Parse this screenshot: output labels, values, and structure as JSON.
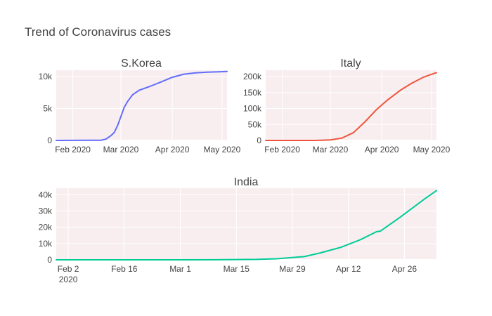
{
  "title": "Trend of Coronavirus cases",
  "colors": {
    "plot_bg": "#f8eef0",
    "grid": "#ffffff"
  },
  "chart_data": [
    {
      "type": "line",
      "subtitle": "S.Korea",
      "x_ticks": [
        "Feb 2020",
        "Mar 2020",
        "Apr 2020",
        "May 2020"
      ],
      "y_ticks": [
        "0",
        "5k",
        "10k"
      ],
      "ylim": [
        0,
        11000
      ],
      "series": [
        {
          "color": "#636efa",
          "x": [
            "2020-01-22",
            "2020-02-01",
            "2020-02-10",
            "2020-02-18",
            "2020-02-21",
            "2020-02-24",
            "2020-02-26",
            "2020-02-28",
            "2020-03-01",
            "2020-03-03",
            "2020-03-05",
            "2020-03-08",
            "2020-03-12",
            "2020-03-18",
            "2020-03-25",
            "2020-04-01",
            "2020-04-08",
            "2020-04-15",
            "2020-04-22",
            "2020-05-01",
            "2020-05-04"
          ],
          "y": [
            1,
            12,
            27,
            31,
            204,
            763,
            1261,
            2337,
            3736,
            5186,
            6088,
            7134,
            7869,
            8413,
            9137,
            9887,
            10384,
            10591,
            10694,
            10774,
            10801
          ]
        }
      ]
    },
    {
      "type": "line",
      "subtitle": "Italy",
      "x_ticks": [
        "Feb 2020",
        "Mar 2020",
        "Apr 2020",
        "May 2020"
      ],
      "y_ticks": [
        "0",
        "50k",
        "100k",
        "150k",
        "200k"
      ],
      "ylim": [
        0,
        220000
      ],
      "series": [
        {
          "color": "#ef553b",
          "x": [
            "2020-01-22",
            "2020-01-31",
            "2020-02-21",
            "2020-03-01",
            "2020-03-08",
            "2020-03-15",
            "2020-03-22",
            "2020-03-29",
            "2020-04-05",
            "2020-04-12",
            "2020-04-19",
            "2020-04-26",
            "2020-05-03",
            "2020-05-04"
          ],
          "y": [
            0,
            2,
            20,
            1694,
            7375,
            24747,
            59138,
            97689,
            128948,
            156363,
            178972,
            197675,
            210717,
            211938
          ]
        }
      ]
    },
    {
      "type": "line",
      "subtitle": "India",
      "x_ticks": [
        "Feb 2\n2020",
        "Feb 16",
        "Mar 1",
        "Mar 15",
        "Mar 29",
        "Apr 12",
        "Apr 26"
      ],
      "y_ticks": [
        "0",
        "10k",
        "20k",
        "30k",
        "40k"
      ],
      "ylim": [
        0,
        44000
      ],
      "series": [
        {
          "color": "#00cc96",
          "x": [
            "2020-01-30",
            "2020-02-15",
            "2020-03-01",
            "2020-03-10",
            "2020-03-20",
            "2020-03-25",
            "2020-04-01",
            "2020-04-05",
            "2020-04-10",
            "2020-04-15",
            "2020-04-19",
            "2020-04-20",
            "2020-04-25",
            "2020-05-01",
            "2020-05-04"
          ],
          "y": [
            1,
            3,
            3,
            56,
            250,
            657,
            1998,
            4288,
            7600,
            12380,
            17265,
            17656,
            26283,
            37336,
            42533
          ]
        }
      ]
    }
  ]
}
